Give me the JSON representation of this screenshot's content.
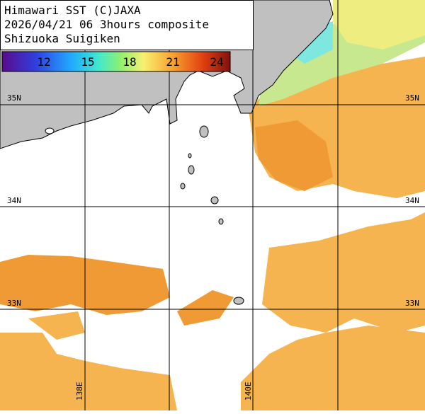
{
  "header": {
    "lines": [
      "Himawari SST (C)JAXA",
      "2026/04/21 06 3hours composite",
      "Shizuoka Suigiken"
    ]
  },
  "colorbar": {
    "labels": [
      12,
      15,
      18,
      21,
      24
    ]
  },
  "latitude_labels": [
    "35N",
    "34N",
    "33N"
  ],
  "longitude_labels": [
    "138E",
    "140E"
  ]
}
